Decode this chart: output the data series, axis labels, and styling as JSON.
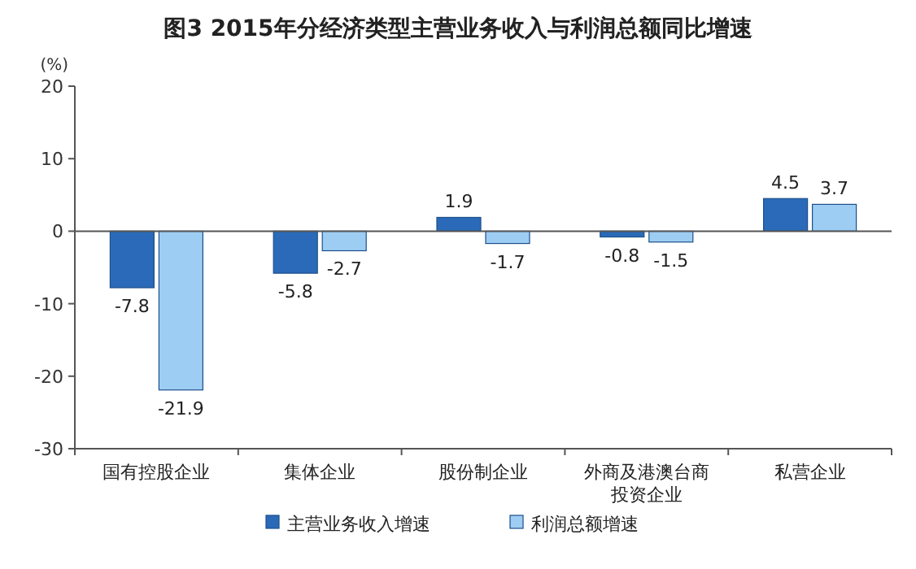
{
  "chart_data": {
    "type": "bar",
    "title": "图3  2015年分经济类型主营业务收入与利润总额同比增速",
    "ylabel": "(%)",
    "categories": [
      "国有控股企业",
      "集体企业",
      "股份制企业",
      "外商及港澳台商投资企业",
      "私营企业"
    ],
    "series": [
      {
        "name": "主营业务收入增速",
        "color": "#2a6ab8",
        "values": [
          -7.8,
          -5.8,
          1.9,
          -0.8,
          4.5
        ]
      },
      {
        "name": "利润总额增速",
        "color": "#9dcdf2",
        "values": [
          -21.9,
          -2.7,
          -1.7,
          -1.5,
          3.7
        ]
      }
    ],
    "ylim": [
      -30,
      20
    ],
    "yticks": [
      -30,
      -20,
      -10,
      0,
      10,
      20
    ],
    "data_labels": true,
    "legend": "bottom"
  }
}
